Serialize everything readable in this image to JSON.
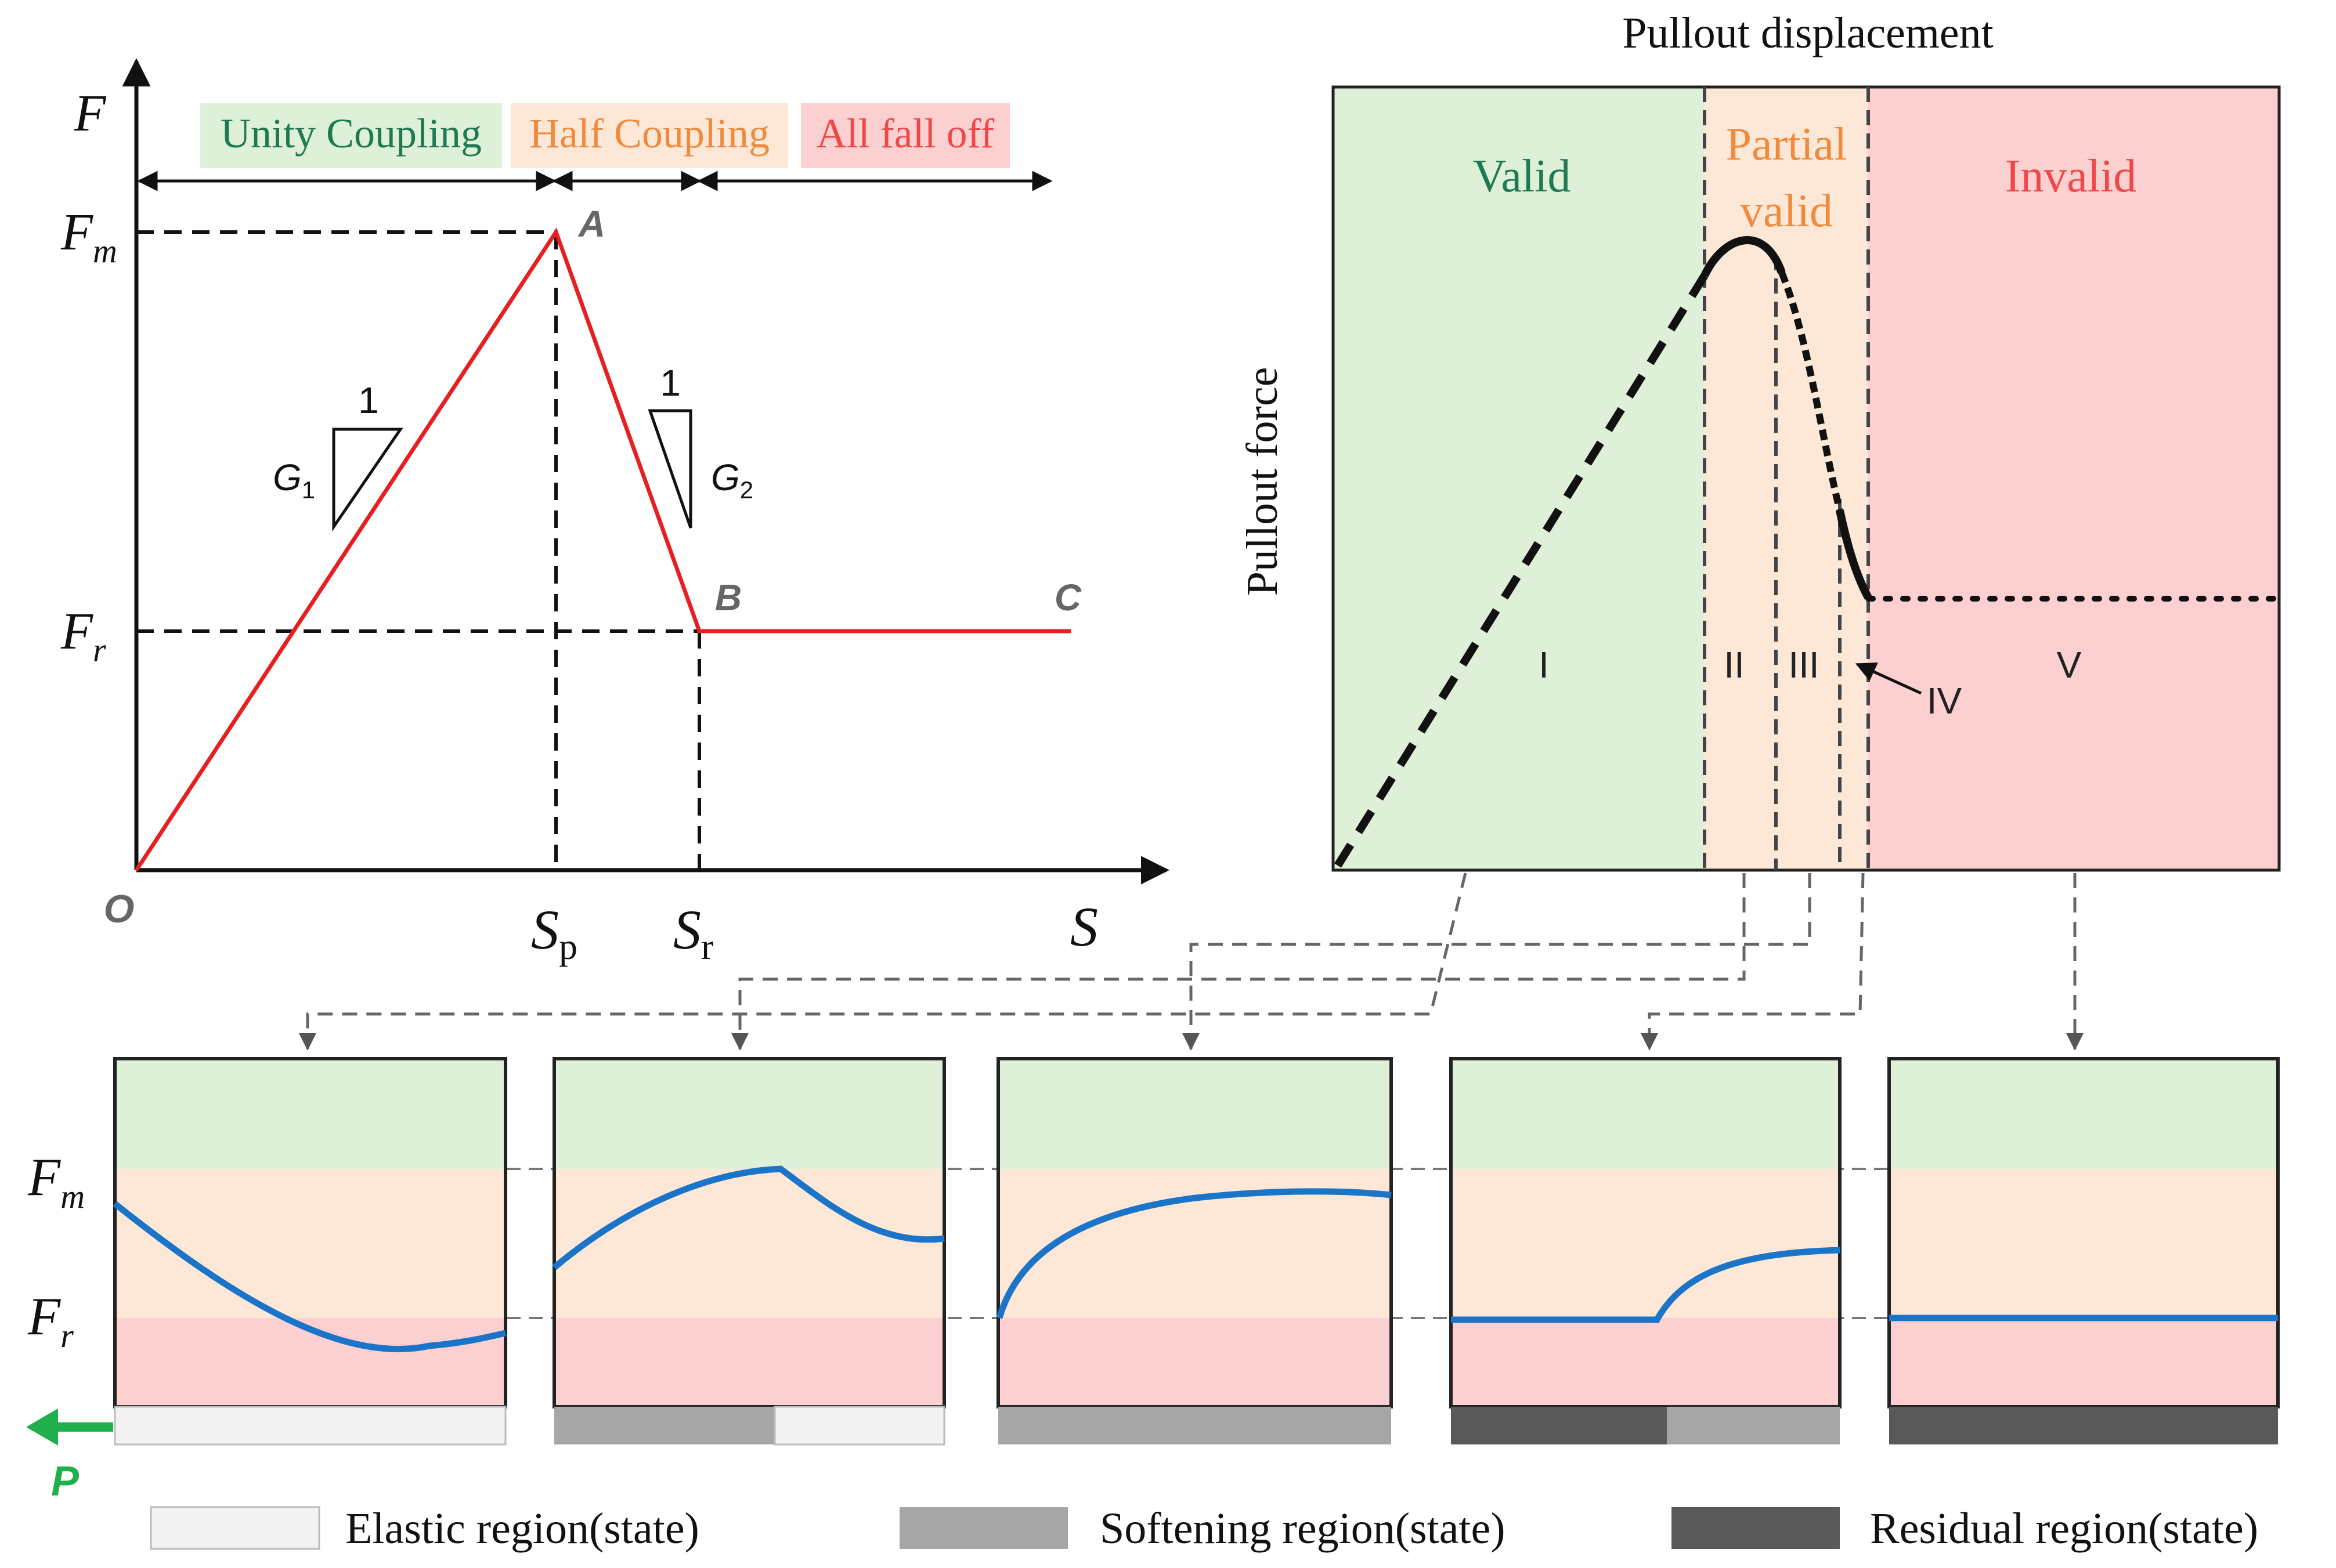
{
  "left_chart": {
    "y_axis_label": "F",
    "x_axis_label": "S",
    "origin_label": "O",
    "fm_label": "F",
    "fm_sub": "m",
    "fr_label": "F",
    "fr_sub": "r",
    "sp_label": "S",
    "sp_sub": "p",
    "sr_label": "S",
    "sr_sub": "r",
    "point_a": "A",
    "point_b": "B",
    "point_c": "C",
    "slope1_label": "1",
    "slope2_label": "1",
    "g1_label": "G",
    "g1_sub": "1",
    "g2_label": "G",
    "g2_sub": "2",
    "stages": [
      {
        "label": "Unity Coupling",
        "color": "#1e7a52",
        "bg": "#dff0d8"
      },
      {
        "label": "Half Coupling",
        "color": "#f08a3c",
        "bg": "#fde8d8"
      },
      {
        "label": "All fall off",
        "color": "#f04848",
        "bg": "#fcd0d0"
      }
    ],
    "line_color": "#e62020"
  },
  "right_chart": {
    "title": "Pullout displacement",
    "y_axis_label": "Pullout force",
    "zones": [
      {
        "label": "Valid",
        "color": "#1e7a52",
        "bg": "#dff0d8"
      },
      {
        "label": "Partial valid",
        "color": "#f08a3c",
        "bg": "#fde8d8"
      },
      {
        "label": "Invalid",
        "color": "#f04848",
        "bg": "#fcd0d0"
      }
    ],
    "stages": [
      "I",
      "II",
      "III",
      "IV",
      "V"
    ]
  },
  "bottom_panels": {
    "fm_label": "F",
    "fm_sub": "m",
    "fr_label": "F",
    "fr_sub": "r",
    "load_label": "P",
    "curve_color": "#1a75c8",
    "load_color": "#1fb04a"
  },
  "legend": [
    {
      "label": "Elastic region(state)",
      "color": "#f2f2f2"
    },
    {
      "label": "Softening region(state)",
      "color": "#a6a6a6"
    },
    {
      "label": "Residual region(state)",
      "color": "#595959"
    }
  ]
}
